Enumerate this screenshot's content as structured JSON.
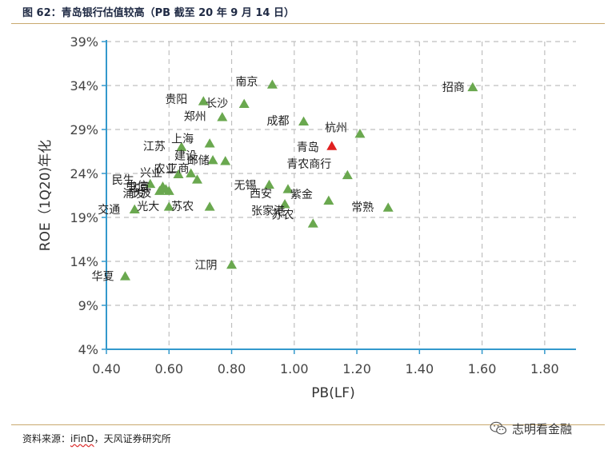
{
  "header": {
    "title": "图 62：青岛银行估值较高（PB 截至 20 年 9 月 14 日）"
  },
  "footer": {
    "source_prefix": "资料来源：",
    "source_ifind": "iFinD",
    "source_suffix": "，天风证券研究所",
    "watermark": "志明看金融",
    "watermark_icon": "wechat-icon"
  },
  "chart_data": {
    "type": "scatter",
    "xlabel": "PB(LF)",
    "ylabel": "ROE（1Q20)年化",
    "xlim": [
      0.4,
      1.9
    ],
    "ylim": [
      4,
      39
    ],
    "x_ticks": [
      0.4,
      0.6,
      0.8,
      1.0,
      1.2,
      1.4,
      1.6,
      1.8
    ],
    "x_tick_labels": [
      "0.40",
      "0.60",
      "0.80",
      "1.00",
      "1.20",
      "1.40",
      "1.60",
      "1.80"
    ],
    "y_ticks": [
      4,
      9,
      14,
      19,
      24,
      29,
      34,
      39
    ],
    "y_tick_labels": [
      "4%",
      "9%",
      "14%",
      "19%",
      "24%",
      "29%",
      "34%",
      "39%"
    ],
    "grid": true,
    "colors": {
      "marker": "#6aa84f",
      "highlight": "#e02020",
      "axis": "#3399cc",
      "grid": "#bfbfbf"
    },
    "points": [
      {
        "label": "招商",
        "x": 1.57,
        "y": 33.8
      },
      {
        "label": "南京",
        "x": 0.93,
        "y": 34.1
      },
      {
        "label": "贵阳",
        "x": 0.71,
        "y": 32.2
      },
      {
        "label": "长沙",
        "x": 0.84,
        "y": 31.9
      },
      {
        "label": "郑州",
        "x": 0.77,
        "y": 30.4
      },
      {
        "label": "成都",
        "x": 1.03,
        "y": 29.9
      },
      {
        "label": "杭州",
        "x": 1.21,
        "y": 28.5
      },
      {
        "label": "青岛",
        "x": 1.12,
        "y": 27.1,
        "highlight": true
      },
      {
        "label": "上海",
        "x": 0.73,
        "y": 27.4
      },
      {
        "label": "江苏",
        "x": 0.64,
        "y": 27.0
      },
      {
        "label": "建设",
        "x": 0.74,
        "y": 25.5
      },
      {
        "label": "邮储",
        "x": 0.78,
        "y": 25.4
      },
      {
        "label": "青农商行",
        "x": 1.17,
        "y": 23.8
      },
      {
        "label": "农业",
        "x": 0.67,
        "y": 24.0
      },
      {
        "label": "兴业",
        "x": 0.63,
        "y": 23.9
      },
      {
        "label": "工商",
        "x": 0.69,
        "y": 23.3
      },
      {
        "label": "无锡",
        "x": 0.92,
        "y": 22.7
      },
      {
        "label": "西安",
        "x": 0.98,
        "y": 22.2
      },
      {
        "label": "民生",
        "x": 0.54,
        "y": 22.8
      },
      {
        "label": "中信",
        "x": 0.58,
        "y": 22.5
      },
      {
        "label": "北京",
        "x": 0.59,
        "y": 22.2
      },
      {
        "label": "浦发",
        "x": 0.57,
        "y": 22.0
      },
      {
        "label": "宁波",
        "x": 0.6,
        "y": 22.0
      },
      {
        "label": "紫金",
        "x": 1.11,
        "y": 20.9
      },
      {
        "label": "常熟",
        "x": 1.3,
        "y": 20.1
      },
      {
        "label": "苏农",
        "x": 0.73,
        "y": 20.2
      },
      {
        "label": "交通",
        "x": 0.49,
        "y": 19.9
      },
      {
        "label": "光大",
        "x": 0.6,
        "y": 20.2
      },
      {
        "label": "张家港",
        "x": 0.97,
        "y": 20.5
      },
      {
        "label": "江阴",
        "x": 0.8,
        "y": 13.6
      },
      {
        "label": "华夏",
        "x": 0.46,
        "y": 12.3
      },
      {
        "label": "苏农",
        "x": 1.06,
        "y": 18.3
      }
    ]
  }
}
